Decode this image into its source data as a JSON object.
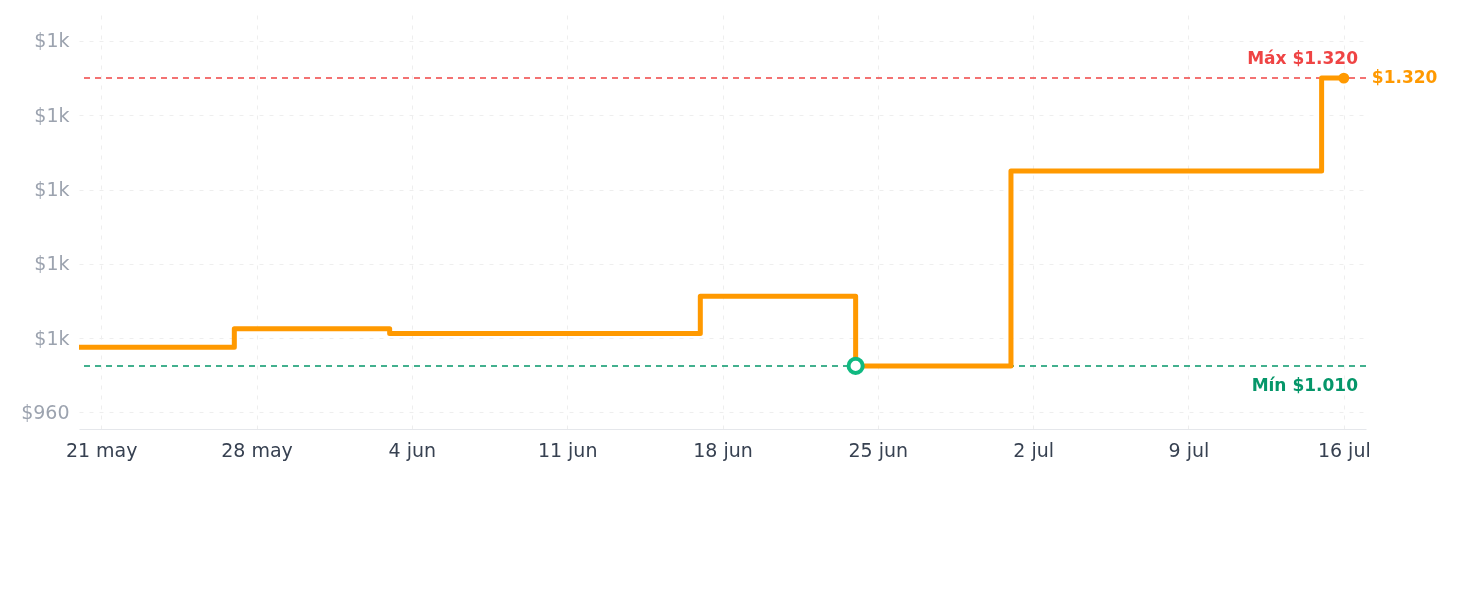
{
  "chart_data": {
    "type": "step",
    "x": [
      "--05-20",
      "--05-27",
      "--06-03",
      "--06-17",
      "--06-24",
      "--07-01",
      "--07-15",
      "--07-16"
    ],
    "series": [
      {
        "color": "#ff9900",
        "values": [
          1030,
          1050,
          1045,
          1085,
          1010,
          1220,
          1320,
          1320
        ],
        "marker": "none",
        "line_style": "solid"
      },
      {
        "type": "scatter",
        "color": "#10b981",
        "x": [
          "--06-24"
        ],
        "values": [
          1010
        ],
        "marker": "circle"
      },
      {
        "type": "scatter",
        "color": "#ff9900",
        "x": [
          "--07-16"
        ],
        "values": [
          1320
        ],
        "marker": "circle",
        "value_labels": [
          "$1.320"
        ]
      }
    ],
    "xlim": [
      "--05-20",
      "--07-17"
    ],
    "xticks": [
      {
        "value": "--05-21",
        "label": "21 may"
      },
      {
        "value": "--05-28",
        "label": "28 may"
      },
      {
        "value": "--06-04",
        "label": "4 jun"
      },
      {
        "value": "--06-11",
        "label": "11 jun"
      },
      {
        "value": "--06-18",
        "label": "18 jun"
      },
      {
        "value": "--06-25",
        "label": "25 jun"
      },
      {
        "value": "--07-02",
        "label": "2 jul"
      },
      {
        "value": "--07-09",
        "label": "9 jul"
      },
      {
        "value": "--07-16",
        "label": "16 jul"
      }
    ],
    "ylim": [
      942,
      1388
    ],
    "yticks": [
      {
        "value": 960,
        "label": "$960"
      },
      {
        "value": 1040,
        "label": "$1k"
      },
      {
        "value": 1120,
        "label": "$1k"
      },
      {
        "value": 1200,
        "label": "$1k"
      },
      {
        "value": 1280,
        "label": "$1k"
      },
      {
        "value": 1360,
        "label": "$1k"
      }
    ],
    "ref_lines": [
      {
        "axis": "y",
        "value": 1320,
        "label": "Máx $1.320",
        "color": "#ef4444",
        "line_style": "dashed"
      },
      {
        "axis": "y",
        "value": 1010,
        "label": "Mín $1.010",
        "color": "#059669",
        "line_style": "dashed"
      }
    ],
    "grid": true
  }
}
